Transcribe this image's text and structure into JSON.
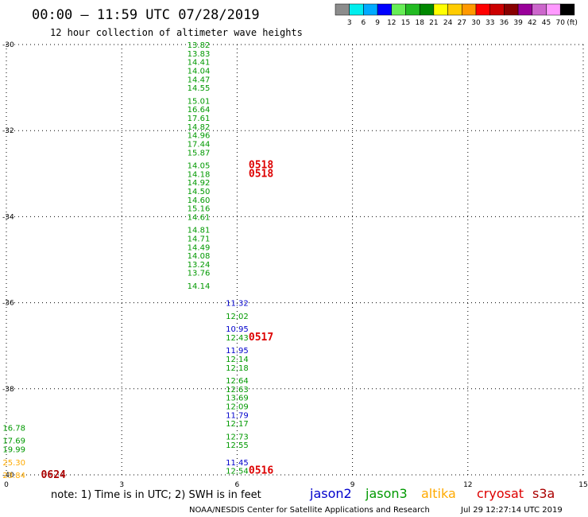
{
  "chart_data": {
    "type": "scatter",
    "title": "00:00 – 11:59 UTC 07/28/2019",
    "subtitle": "12 hour collection of altimeter wave heights",
    "xlim": [
      0,
      15
    ],
    "ylim": [
      -40,
      -30
    ],
    "x_ticks": [
      "0",
      "3",
      "6",
      "9",
      "12",
      "15"
    ],
    "y_ticks": [
      "-30",
      "-32",
      "-34",
      "-36",
      "-38",
      "-40"
    ],
    "grid": true,
    "colorbar": {
      "unit": "(ft)",
      "labels": [
        "3",
        "6",
        "9",
        "12",
        "15",
        "18",
        "21",
        "24",
        "27",
        "30",
        "33",
        "36",
        "39",
        "42",
        "45",
        "70"
      ],
      "colors": [
        "#8c8c8c",
        "#00eeee",
        "#00aaff",
        "#0000ff",
        "#66ee55",
        "#22bb22",
        "#008800",
        "#ffff00",
        "#ffcc00",
        "#ff9900",
        "#ff0000",
        "#cc0000",
        "#880000",
        "#990099",
        "#cc66cc",
        "#ff99ff",
        "#000000"
      ]
    },
    "series": [
      {
        "name": "jason2",
        "color": "#0000cc",
        "points": [
          {
            "x": 6.0,
            "y": -36.0,
            "label": "11.32"
          },
          {
            "x": 6.0,
            "y": -36.6,
            "label": "10.95"
          },
          {
            "x": 6.0,
            "y": -37.1,
            "label": "11.95"
          },
          {
            "x": 6.0,
            "y": -38.6,
            "label": "11.79"
          },
          {
            "x": 6.0,
            "y": -39.7,
            "label": "11.45"
          }
        ]
      },
      {
        "name": "jason3",
        "color": "#009900",
        "points": [
          {
            "x": 5.0,
            "y": -30.0,
            "label": "13.82"
          },
          {
            "x": 5.0,
            "y": -30.2,
            "label": "13.83"
          },
          {
            "x": 5.0,
            "y": -30.4,
            "label": "14.41"
          },
          {
            "x": 5.0,
            "y": -30.6,
            "label": "14.04"
          },
          {
            "x": 5.0,
            "y": -30.8,
            "label": "14.47"
          },
          {
            "x": 5.0,
            "y": -31.0,
            "label": "14.55"
          },
          {
            "x": 5.0,
            "y": -31.3,
            "label": "15.01"
          },
          {
            "x": 5.0,
            "y": -31.5,
            "label": "16.64"
          },
          {
            "x": 5.0,
            "y": -31.7,
            "label": "17.61"
          },
          {
            "x": 5.0,
            "y": -31.9,
            "label": "14.82"
          },
          {
            "x": 5.0,
            "y": -32.1,
            "label": "14.96"
          },
          {
            "x": 5.0,
            "y": -32.3,
            "label": "17.44"
          },
          {
            "x": 5.0,
            "y": -32.5,
            "label": "15.87"
          },
          {
            "x": 5.0,
            "y": -32.8,
            "label": "14.05"
          },
          {
            "x": 5.0,
            "y": -33.0,
            "label": "14.18"
          },
          {
            "x": 5.0,
            "y": -33.2,
            "label": "14.92"
          },
          {
            "x": 5.0,
            "y": -33.4,
            "label": "14.50"
          },
          {
            "x": 5.0,
            "y": -33.6,
            "label": "14.60"
          },
          {
            "x": 5.0,
            "y": -33.8,
            "label": "15.16"
          },
          {
            "x": 5.0,
            "y": -34.0,
            "label": "14.61"
          },
          {
            "x": 5.0,
            "y": -34.3,
            "label": "14.81"
          },
          {
            "x": 5.0,
            "y": -34.5,
            "label": "14.71"
          },
          {
            "x": 5.0,
            "y": -34.7,
            "label": "14.49"
          },
          {
            "x": 5.0,
            "y": -34.9,
            "label": "14.08"
          },
          {
            "x": 5.0,
            "y": -35.1,
            "label": "13.24"
          },
          {
            "x": 5.0,
            "y": -35.3,
            "label": "13.76"
          },
          {
            "x": 5.0,
            "y": -35.6,
            "label": "14.14"
          },
          {
            "x": 6.0,
            "y": -36.3,
            "label": "12.02"
          },
          {
            "x": 6.0,
            "y": -36.8,
            "label": "12.43"
          },
          {
            "x": 6.0,
            "y": -37.3,
            "label": "12.14"
          },
          {
            "x": 6.0,
            "y": -37.5,
            "label": "12.18"
          },
          {
            "x": 6.0,
            "y": -37.8,
            "label": "12.64"
          },
          {
            "x": 6.0,
            "y": -38.0,
            "label": "12.63"
          },
          {
            "x": 6.0,
            "y": -38.2,
            "label": "13.69"
          },
          {
            "x": 6.0,
            "y": -38.4,
            "label": "12.09"
          },
          {
            "x": 6.0,
            "y": -38.8,
            "label": "12.17"
          },
          {
            "x": 6.0,
            "y": -39.1,
            "label": "12.73"
          },
          {
            "x": 6.0,
            "y": -39.3,
            "label": "12.55"
          },
          {
            "x": 6.0,
            "y": -39.9,
            "label": "12.54"
          },
          {
            "x": 0.2,
            "y": -38.9,
            "label": "16.78"
          },
          {
            "x": 0.2,
            "y": -39.2,
            "label": "17.69"
          },
          {
            "x": 0.2,
            "y": -39.4,
            "label": "19.99"
          }
        ]
      },
      {
        "name": "altika",
        "color": "#ffaa00",
        "points": [
          {
            "x": 0.2,
            "y": -39.7,
            "label": "25.30"
          },
          {
            "x": 0.2,
            "y": -40.0,
            "label": "23.84"
          }
        ]
      },
      {
        "name": "cryosat",
        "color": "#dd0000",
        "points": [
          {
            "x": 6.3,
            "y": -32.8,
            "label": "0518"
          },
          {
            "x": 6.3,
            "y": -33.0,
            "label": "0518"
          },
          {
            "x": 6.3,
            "y": -36.8,
            "label": "0517"
          },
          {
            "x": 6.3,
            "y": -39.9,
            "label": "0516"
          }
        ]
      },
      {
        "name": "s3a",
        "color": "#aa0000",
        "points": [
          {
            "x": 0.9,
            "y": -40.0,
            "label": "0624"
          }
        ]
      }
    ]
  },
  "note": "note: 1) Time is in UTC; 2) SWH is in feet",
  "credit": "NOAA/NESDIS Center for Satellite Applications and Research",
  "timestamp": "Jul 29 12:27:14 UTC 2019"
}
